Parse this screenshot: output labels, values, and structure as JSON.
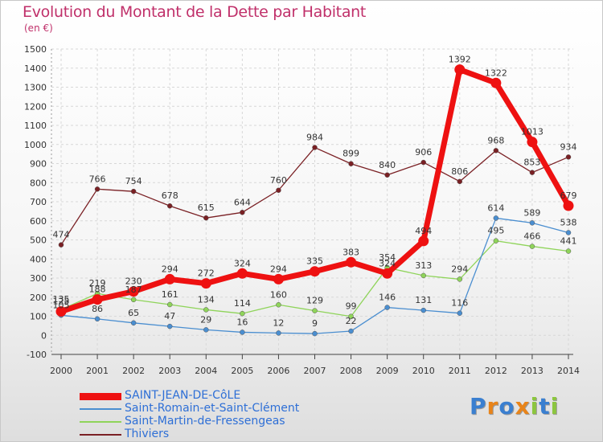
{
  "chart_data": {
    "type": "line",
    "title": "Evolution du Montant de la Dette par Habitant",
    "subtitle": "(en €)",
    "xlabel": "",
    "ylabel": "",
    "x": [
      "2000",
      "2001",
      "2002",
      "2003",
      "2004",
      "2005",
      "2006",
      "2007",
      "2008",
      "2009",
      "2010",
      "2011",
      "2012",
      "2013",
      "2014"
    ],
    "ylim": [
      -100,
      1500
    ],
    "yticks": [
      -100,
      0,
      100,
      200,
      300,
      400,
      500,
      600,
      700,
      800,
      900,
      1000,
      1100,
      1200,
      1300,
      1400,
      1500
    ],
    "grid": true,
    "legend_position": "bottom-left",
    "series": [
      {
        "name": "SAINT-JEAN-DE-CôLE",
        "color": "#ee1111",
        "values": [
          125,
          188,
          230,
          294,
          272,
          324,
          294,
          335,
          383,
          324,
          494,
          1392,
          1322,
          1013,
          679
        ]
      },
      {
        "name": "Saint-Romain-et-Saint-Clément",
        "color": "#4a8ed0",
        "values": [
          105,
          86,
          65,
          47,
          29,
          16,
          12,
          9,
          22,
          146,
          131,
          116,
          614,
          589,
          538
        ]
      },
      {
        "name": "Saint-Martin-de-Fressengeas",
        "color": "#8fd45a",
        "values": [
          135,
          219,
          187,
          161,
          134,
          114,
          160,
          129,
          99,
          354,
          313,
          294,
          495,
          466,
          441
        ]
      },
      {
        "name": "Thiviers",
        "color": "#7a2024",
        "values": [
          474,
          766,
          754,
          678,
          615,
          644,
          760,
          984,
          899,
          840,
          906,
          806,
          968,
          853,
          934
        ]
      }
    ]
  },
  "logo": {
    "letters": [
      "P",
      "r",
      "o",
      "x",
      "i",
      "t",
      "i"
    ],
    "colors": [
      "#3a7fd0",
      "#e8841a",
      "#3a7fd0",
      "#e8841a",
      "#8cc63f",
      "#3a7fd0",
      "#8cc63f"
    ]
  }
}
